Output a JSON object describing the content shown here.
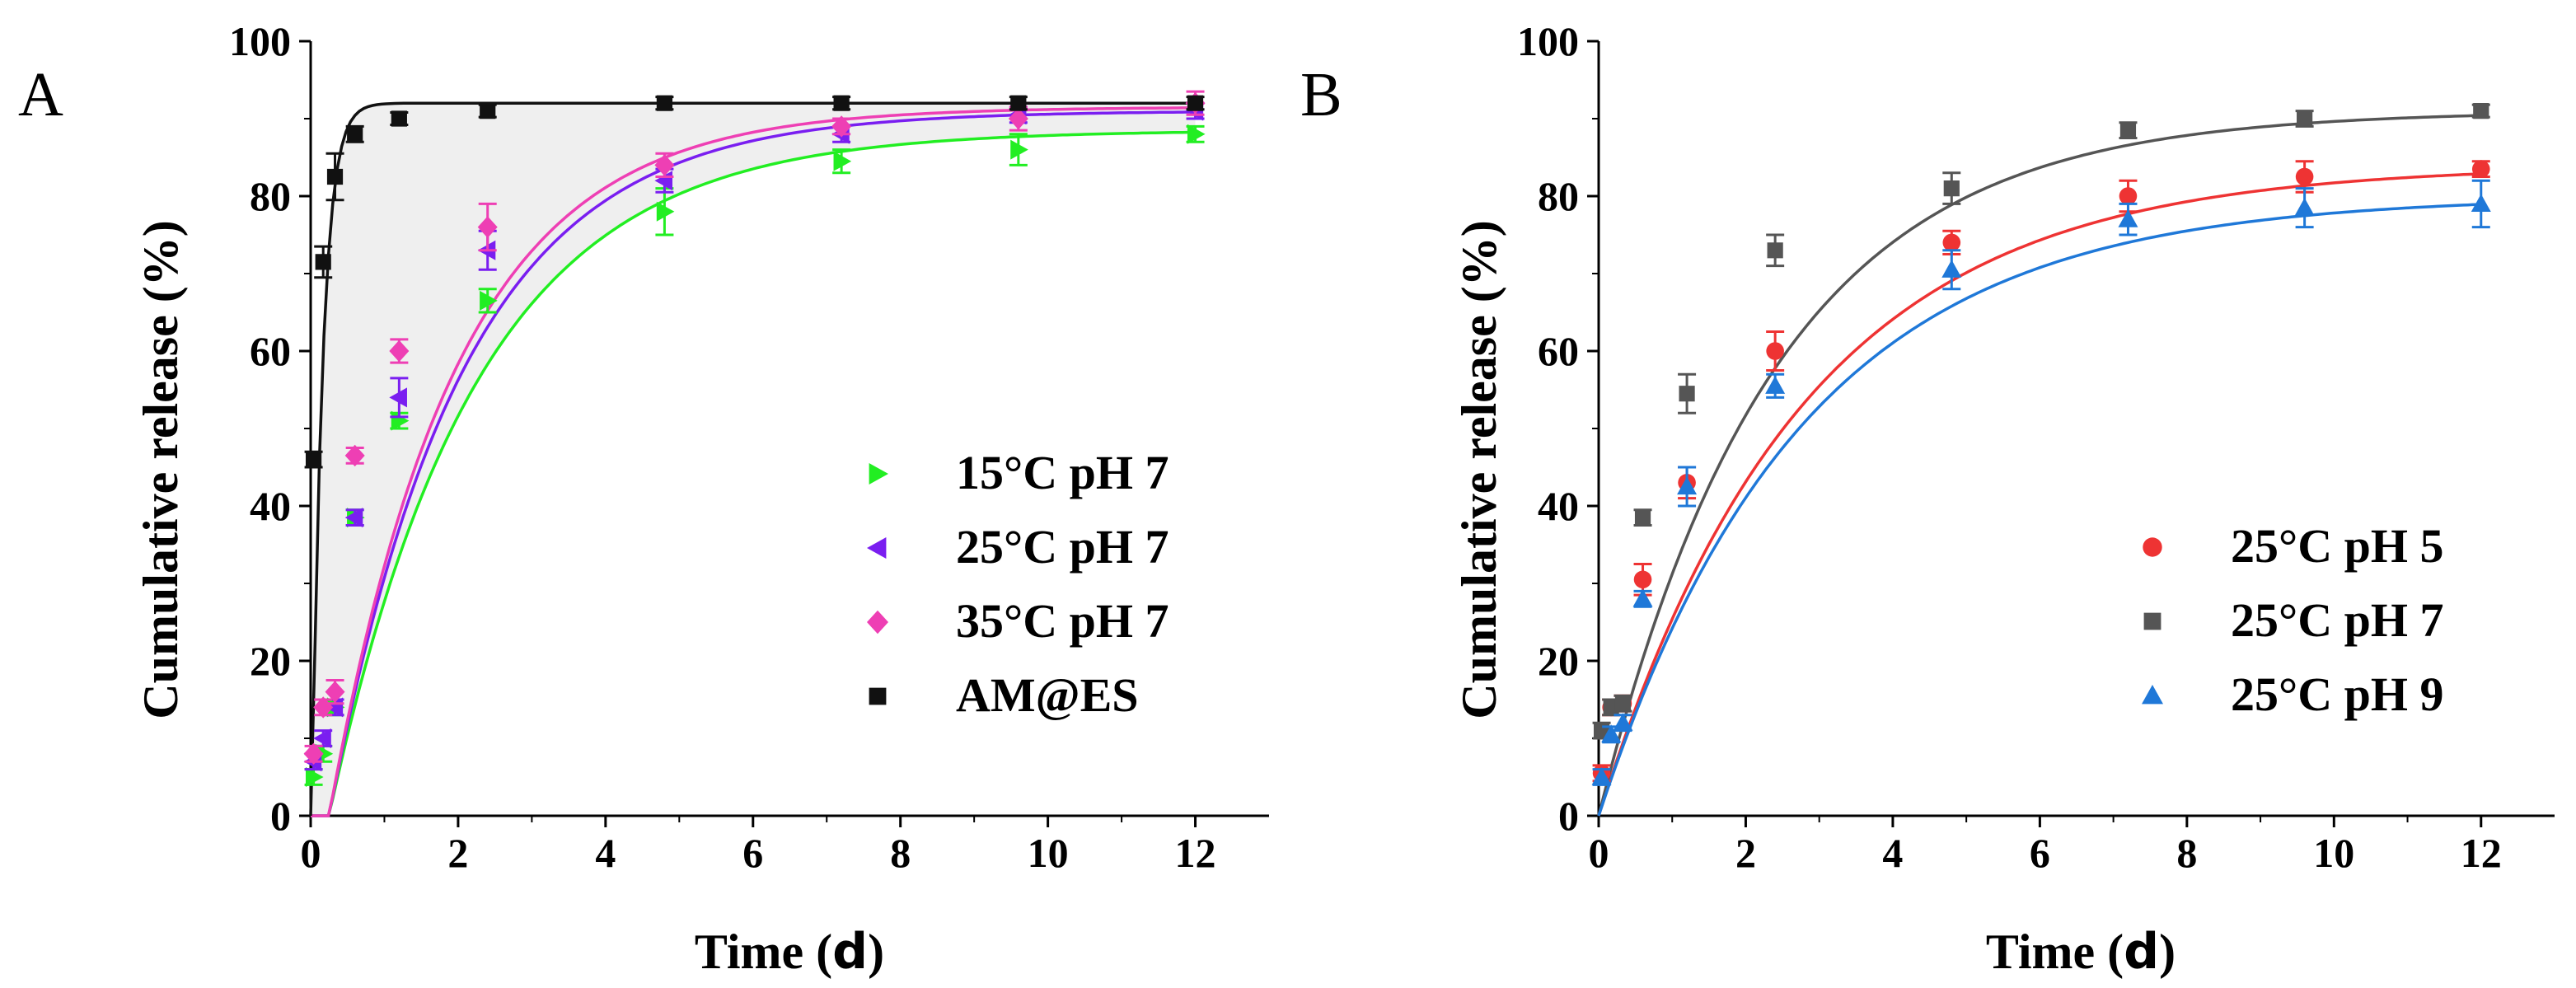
{
  "chart_data": [
    {
      "panel": "A",
      "type": "scatter",
      "xlabel_main": "Time (",
      "xlabel_unit": "d",
      "xlabel_close": ")",
      "ylabel": "Cumulative release (%)",
      "xlim": [
        0,
        13
      ],
      "ylim": [
        0,
        100
      ],
      "xticks": [
        "0",
        "2",
        "4",
        "6",
        "8",
        "10",
        "12"
      ],
      "yticks": [
        "0",
        "20",
        "40",
        "60",
        "80",
        "100"
      ],
      "legend_position": "bottom-right",
      "shaded_region": "between AM@ES fit and 15°C pH 7 fit",
      "series": [
        {
          "name": "15°C pH 7",
          "color": "#22ee22",
          "marker": "triangle-right",
          "x": [
            0.04,
            0.17,
            0.33,
            0.6,
            1.2,
            2.4,
            4.8,
            7.2,
            9.6,
            12
          ],
          "y": [
            5,
            8,
            14,
            38.5,
            51,
            66.5,
            78,
            84.5,
            86,
            88
          ],
          "err": [
            1,
            1,
            1,
            1,
            1,
            1.5,
            3,
            1.5,
            2,
            1
          ],
          "fit": {
            "a": 88.5,
            "k": 0.5,
            "b": 0.25
          }
        },
        {
          "name": "25°C pH 7",
          "color": "#7a1ef0",
          "marker": "triangle-left",
          "x": [
            0.04,
            0.17,
            0.33,
            0.6,
            1.2,
            2.4,
            4.8,
            7.2,
            9.6,
            12
          ],
          "y": [
            7,
            10,
            14,
            38.5,
            54,
            73,
            82,
            88,
            90.5,
            91
          ],
          "err": [
            1,
            1,
            1,
            1,
            2.5,
            2.5,
            1.5,
            1,
            1,
            1
          ],
          "fit": {
            "a": 91,
            "k": 0.55,
            "b": 0.25
          }
        },
        {
          "name": "35°C pH 7",
          "color": "#ee3fb4",
          "marker": "diamond",
          "x": [
            0.04,
            0.17,
            0.33,
            0.6,
            1.2,
            2.4,
            4.8,
            7.2,
            9.6,
            12
          ],
          "y": [
            8,
            14,
            16,
            46.5,
            60,
            76,
            84,
            89,
            90,
            92
          ],
          "err": [
            1,
            1,
            1.5,
            1,
            1.5,
            3,
            1.5,
            1,
            1.5,
            1.5
          ],
          "fit": {
            "a": 91.5,
            "k": 0.58,
            "b": 0.25
          }
        },
        {
          "name": "AM@ES",
          "color": "#111111",
          "marker": "square",
          "x": [
            0.04,
            0.17,
            0.33,
            0.6,
            1.2,
            2.4,
            4.8,
            7.2,
            9.6,
            12
          ],
          "y": [
            46,
            71.5,
            82.5,
            88,
            90,
            91,
            92,
            92,
            92,
            92
          ],
          "err": [
            1,
            2,
            3,
            1,
            0.8,
            0.8,
            0.8,
            0.8,
            0.8,
            0.8
          ],
          "fit": {
            "a": 92,
            "k": 7.0,
            "b": 0.02
          }
        }
      ]
    },
    {
      "panel": "B",
      "type": "scatter",
      "xlabel_main": "Time (",
      "xlabel_unit": "d",
      "xlabel_close": ")",
      "ylabel": "Cumulative release (%)",
      "xlim": [
        0,
        13
      ],
      "ylim": [
        0,
        100
      ],
      "xticks": [
        "0",
        "2",
        "4",
        "6",
        "8",
        "10",
        "12"
      ],
      "yticks": [
        "0",
        "20",
        "40",
        "60",
        "80",
        "100"
      ],
      "legend_position": "bottom-right",
      "series": [
        {
          "name": "25°C pH 5",
          "color": "#ee3333",
          "marker": "circle",
          "x": [
            0.04,
            0.17,
            0.33,
            0.6,
            1.2,
            2.4,
            4.8,
            7.2,
            9.6,
            12
          ],
          "y": [
            5.5,
            14,
            14.5,
            30.5,
            43,
            60,
            74,
            80,
            82.5,
            83.5
          ],
          "err": [
            1,
            1,
            1,
            2,
            2,
            2.5,
            1.5,
            2,
            2,
            1
          ],
          "fit": {
            "a": 84,
            "k": 0.36,
            "b": 0
          }
        },
        {
          "name": "25°C pH 7",
          "color": "#555555",
          "marker": "square",
          "x": [
            0.04,
            0.17,
            0.33,
            0.6,
            1.2,
            2.4,
            4.8,
            7.2,
            9.6,
            12
          ],
          "y": [
            11,
            14,
            14.5,
            38.5,
            54.5,
            73,
            81,
            88.5,
            90,
            91
          ],
          "err": [
            1,
            1,
            1,
            1,
            2.5,
            2,
            2,
            1,
            1,
            0.8
          ],
          "fit": {
            "a": 91,
            "k": 0.42,
            "b": 0
          }
        },
        {
          "name": "25°C pH 9",
          "color": "#1f78d8",
          "marker": "triangle-up",
          "x": [
            0.04,
            0.17,
            0.33,
            0.6,
            1.2,
            2.4,
            4.8,
            7.2,
            9.6,
            12
          ],
          "y": [
            5,
            10.5,
            12,
            28,
            42.5,
            55.5,
            70.5,
            77,
            78.5,
            79
          ],
          "err": [
            1,
            1,
            1,
            1,
            2.5,
            1.5,
            2.5,
            2,
            2.5,
            3
          ],
          "fit": {
            "a": 80,
            "k": 0.36,
            "b": 0
          }
        }
      ]
    }
  ]
}
